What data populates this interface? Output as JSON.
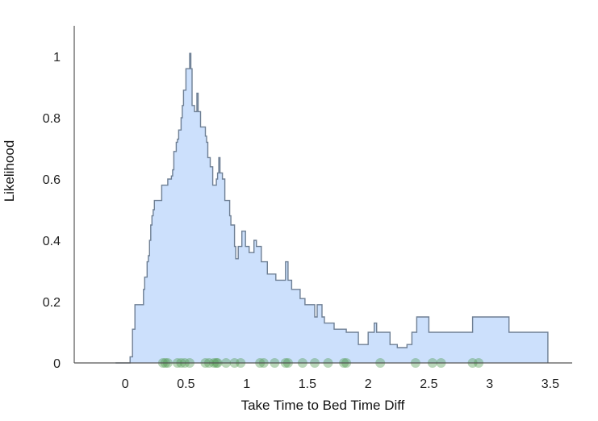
{
  "chart_data": {
    "type": "area",
    "title": "",
    "xlabel": "Take Time to Bed Time Diff",
    "ylabel": "Likelihood",
    "xlim": [
      -0.42,
      3.68
    ],
    "ylim": [
      0,
      1.1
    ],
    "xticks": [
      0,
      0.5,
      1,
      1.5,
      2,
      2.5,
      3,
      3.5
    ],
    "xtick_labels": [
      "0",
      "0.5",
      "1",
      "1.5",
      "2",
      "2.5",
      "3",
      "3.5"
    ],
    "yticks": [
      0,
      0.2,
      0.4,
      0.6,
      0.8,
      1
    ],
    "ytick_labels": [
      "0",
      "0.2",
      "0.4",
      "0.6",
      "0.8",
      "1"
    ],
    "grid": false,
    "colors": {
      "fill": "#cce0fc",
      "line": "#6e7f94",
      "points": "#4f9a4f"
    },
    "series": [
      {
        "style": "step-area",
        "x": [
          -0.08,
          0.04,
          0.06,
          0.08,
          0.15,
          0.16,
          0.18,
          0.19,
          0.2,
          0.21,
          0.22,
          0.23,
          0.24,
          0.25,
          0.26,
          0.27,
          0.28,
          0.3,
          0.35,
          0.38,
          0.39,
          0.4,
          0.42,
          0.43,
          0.44,
          0.45,
          0.46,
          0.47,
          0.48,
          0.49,
          0.5,
          0.52,
          0.53,
          0.54,
          0.55,
          0.57,
          0.58,
          0.59,
          0.6,
          0.62,
          0.64,
          0.66,
          0.67,
          0.68,
          0.7,
          0.71,
          0.72,
          0.73,
          0.74,
          0.75,
          0.76,
          0.77,
          0.78,
          0.8,
          0.82,
          0.86,
          0.87,
          0.9,
          0.91,
          0.92,
          0.93,
          0.96,
          0.97,
          0.99,
          1.02,
          1.04,
          1.06,
          1.08,
          1.12,
          1.14,
          1.17,
          1.2,
          1.24,
          1.27,
          1.3,
          1.32,
          1.34,
          1.37,
          1.44,
          1.48,
          1.52,
          1.54,
          1.56,
          1.58,
          1.62,
          1.64,
          1.72,
          1.82,
          1.84,
          1.86,
          1.88,
          1.92,
          2.0,
          2.03,
          2.05,
          2.07,
          2.1,
          2.18,
          2.24,
          2.32,
          2.36,
          2.38,
          2.4,
          2.5,
          2.64,
          2.82,
          2.86,
          2.92,
          2.98,
          3.14,
          3.16,
          3.48
        ],
        "y": [
          0,
          0.02,
          0.11,
          0.19,
          0.24,
          0.28,
          0.33,
          0.35,
          0.4,
          0.45,
          0.48,
          0.5,
          0.53,
          0.53,
          0.53,
          0.53,
          0.53,
          0.58,
          0.6,
          0.61,
          0.63,
          0.69,
          0.72,
          0.73,
          0.76,
          0.76,
          0.8,
          0.84,
          0.89,
          0.89,
          0.96,
          0.96,
          1.01,
          0.96,
          0.84,
          0.82,
          0.82,
          0.88,
          0.82,
          0.77,
          0.77,
          0.74,
          0.72,
          0.67,
          0.64,
          0.64,
          0.58,
          0.58,
          0.58,
          0.6,
          0.62,
          0.67,
          0.62,
          0.6,
          0.53,
          0.48,
          0.45,
          0.38,
          0.34,
          0.34,
          0.38,
          0.43,
          0.43,
          0.38,
          0.36,
          0.36,
          0.4,
          0.38,
          0.33,
          0.33,
          0.29,
          0.29,
          0.27,
          0.27,
          0.27,
          0.33,
          0.27,
          0.24,
          0.21,
          0.19,
          0.19,
          0.19,
          0.15,
          0.19,
          0.15,
          0.13,
          0.11,
          0.1,
          0.1,
          0.1,
          0.1,
          0.06,
          0.1,
          0.1,
          0.13,
          0.1,
          0.1,
          0.06,
          0.05,
          0.06,
          0.1,
          0.1,
          0.15,
          0.1,
          0.1,
          0.1,
          0.15,
          0.15,
          0.15,
          0.15,
          0.1,
          0
        ]
      }
    ],
    "points": [
      0.31,
      0.33,
      0.35,
      0.43,
      0.46,
      0.49,
      0.53,
      0.66,
      0.69,
      0.73,
      0.75,
      0.76,
      0.83,
      0.9,
      0.95,
      1.11,
      1.14,
      1.23,
      1.32,
      1.34,
      1.46,
      1.56,
      1.67,
      1.8,
      1.82,
      2.1,
      2.39,
      2.53,
      2.6,
      2.86,
      2.91
    ]
  }
}
